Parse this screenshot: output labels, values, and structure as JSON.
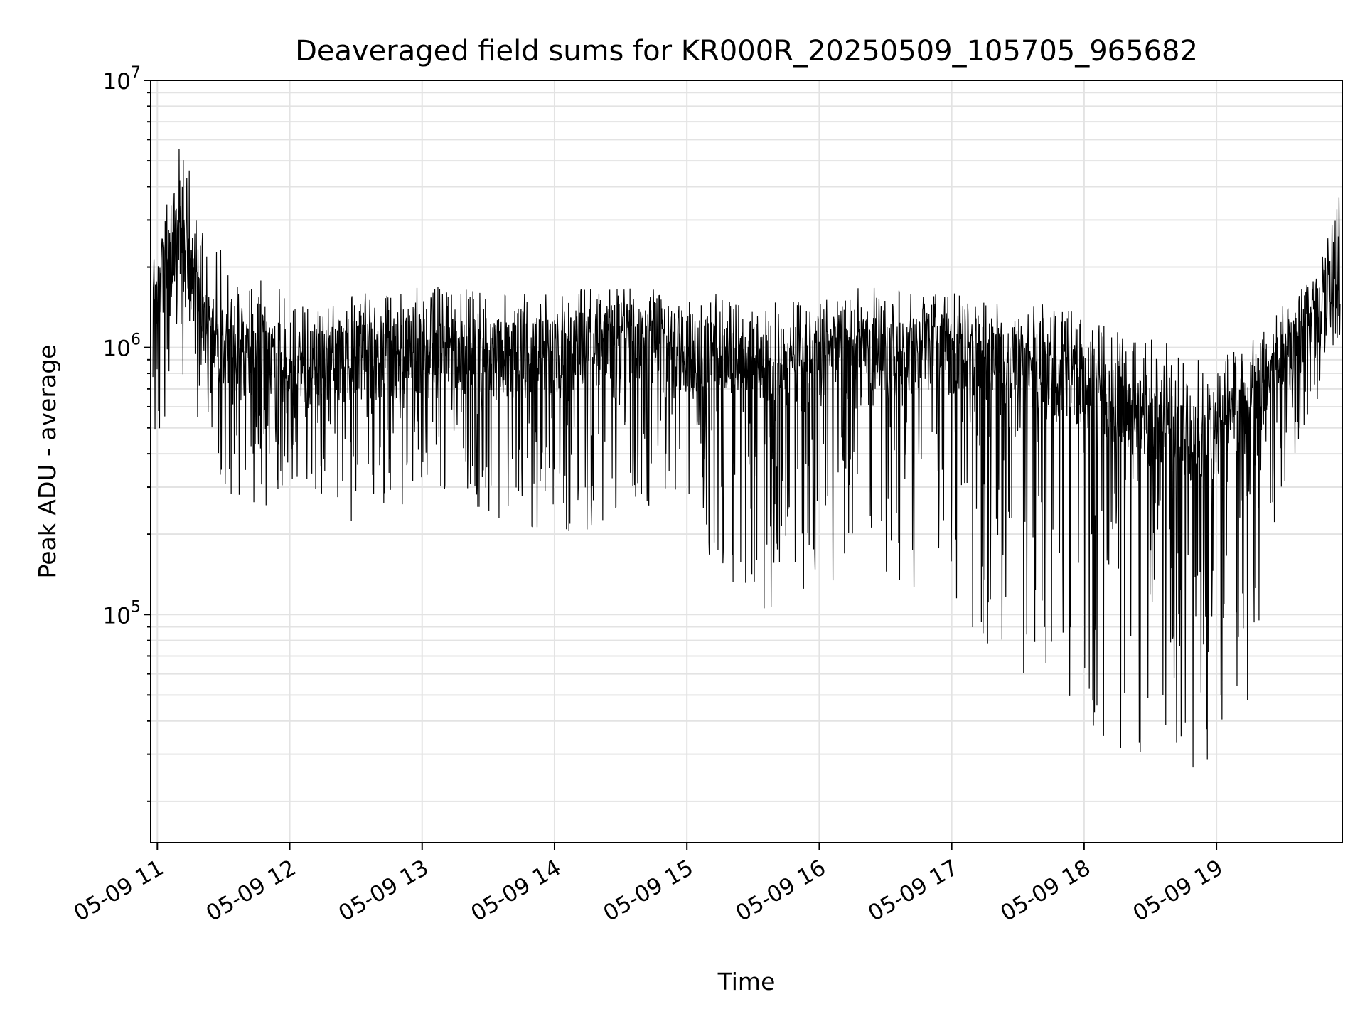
{
  "chart_data": {
    "type": "line",
    "title": "Deaveraged field sums for KR000R_20250509_105705_965682",
    "xlabel": "Time",
    "ylabel": "Peak ADU - average",
    "y_scale": "log",
    "ylim": [
      14000,
      10000000
    ],
    "xlim": [
      "05-09 10:57",
      "05-09 19:57"
    ],
    "grid": true,
    "x_ticks": [
      "05-09 11",
      "05-09 12",
      "05-09 13",
      "05-09 14",
      "05-09 15",
      "05-09 16",
      "05-09 17",
      "05-09 18",
      "05-09 19"
    ],
    "y_ticks": [
      {
        "base": "10",
        "exp": "5"
      },
      {
        "base": "10",
        "exp": "6"
      },
      {
        "base": "10",
        "exp": "7"
      }
    ],
    "line_color": "#000000",
    "series": [
      {
        "x": [
          "05-09 10:58",
          "05-09 11:05",
          "05-09 11:10",
          "05-09 11:15",
          "05-09 11:20",
          "05-09 11:30",
          "05-09 11:40",
          "05-09 11:50",
          "05-09 12:00",
          "05-09 12:15",
          "05-09 12:30",
          "05-09 12:45",
          "05-09 13:00",
          "05-09 13:15",
          "05-09 13:30",
          "05-09 13:45",
          "05-09 14:00",
          "05-09 14:15",
          "05-09 14:30",
          "05-09 14:45",
          "05-09 15:00",
          "05-09 15:15",
          "05-09 15:30",
          "05-09 15:45",
          "05-09 16:00",
          "05-09 16:15",
          "05-09 16:30",
          "05-09 16:45",
          "05-09 17:00",
          "05-09 17:15",
          "05-09 17:30",
          "05-09 17:45",
          "05-09 18:00",
          "05-09 18:15",
          "05-09 18:30",
          "05-09 18:45",
          "05-09 19:00",
          "05-09 19:15",
          "05-09 19:30",
          "05-09 19:45",
          "05-09 19:56"
        ],
        "y_high": [
          2000000,
          4000000,
          7000000,
          5000000,
          3000000,
          2500000,
          1800000,
          2000000,
          1700000,
          1600000,
          1700000,
          1700000,
          1800000,
          1800000,
          1700000,
          1700000,
          1700000,
          1800000,
          1800000,
          1800000,
          1700000,
          1700000,
          1600000,
          1600000,
          1700000,
          1800000,
          1800000,
          1700000,
          1700000,
          1600000,
          1600000,
          1600000,
          1400000,
          1300000,
          1200000,
          1100000,
          1000000,
          1200000,
          1600000,
          1900000,
          4500000
        ],
        "y_low": [
          400000,
          500000,
          650000,
          600000,
          400000,
          300000,
          250000,
          250000,
          300000,
          250000,
          220000,
          220000,
          300000,
          280000,
          220000,
          200000,
          180000,
          200000,
          250000,
          250000,
          200000,
          150000,
          100000,
          100000,
          120000,
          130000,
          130000,
          110000,
          90000,
          80000,
          60000,
          50000,
          40000,
          30000,
          28000,
          26000,
          28000,
          40000,
          300000,
          600000,
          1000000
        ],
        "y_typical": [
          1500000,
          2000000,
          2500000,
          2000000,
          1200000,
          1000000,
          900000,
          850000,
          800000,
          850000,
          900000,
          900000,
          950000,
          950000,
          900000,
          900000,
          950000,
          1000000,
          1050000,
          1000000,
          950000,
          900000,
          900000,
          850000,
          850000,
          900000,
          950000,
          950000,
          950000,
          900000,
          850000,
          800000,
          700000,
          600000,
          500000,
          450000,
          450000,
          600000,
          900000,
          1300000,
          1800000
        ]
      }
    ]
  }
}
